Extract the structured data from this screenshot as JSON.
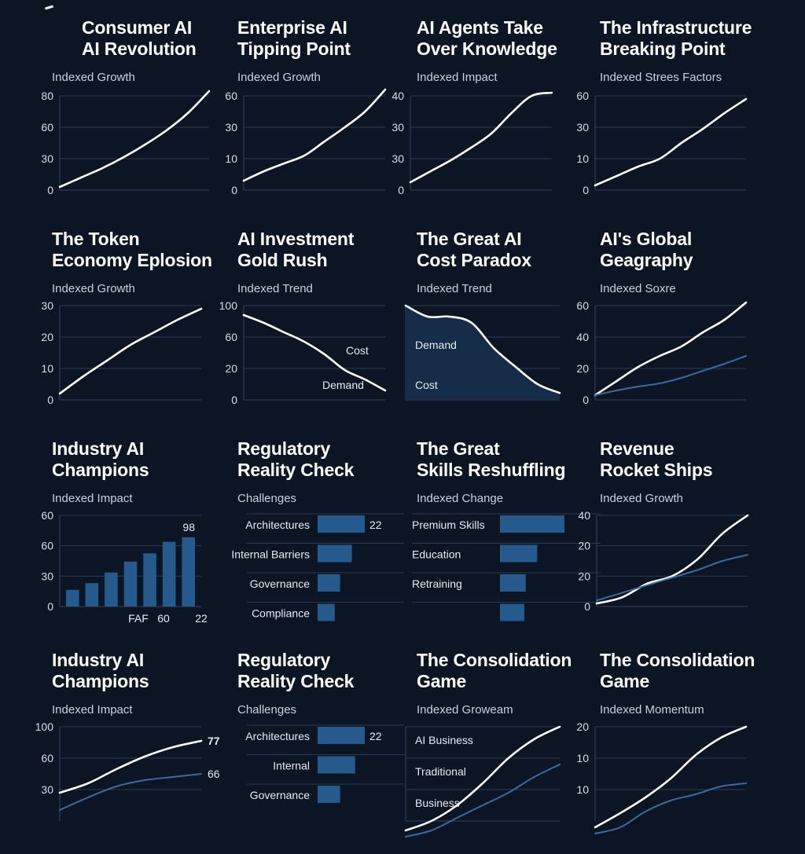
{
  "theme": {
    "background": "#0b1524",
    "primary_line": "#ffffff",
    "secondary_line": "#3d6a9e",
    "bar_fill": "#265a8c",
    "area_fill": "#16304d",
    "grid": "#2a3a52"
  },
  "chart_data": [
    {
      "id": "consumer-ai",
      "type": "line",
      "title": "Consumer AI\nAI Revolution",
      "subtitle": "Indexed Growth",
      "yticks": [
        "80",
        "60",
        "30",
        "0"
      ],
      "ylim": [
        0,
        3
      ],
      "series": [
        {
          "name": "primary",
          "style": "primary",
          "values": [
            0.1,
            0.4,
            0.7,
            1.05,
            1.45,
            1.9,
            2.45,
            3.15
          ]
        }
      ]
    },
    {
      "id": "enterprise-ai",
      "type": "line",
      "title": "Enterprise AI\nTipping Point",
      "subtitle": "Indexed Growth",
      "yticks": [
        "60",
        "30",
        "10",
        "0"
      ],
      "ylim": [
        0,
        3
      ],
      "series": [
        {
          "name": "primary",
          "style": "primary",
          "values": [
            0.3,
            0.6,
            0.85,
            1.1,
            1.55,
            2.0,
            2.5,
            3.2
          ]
        }
      ]
    },
    {
      "id": "ai-agents",
      "type": "line",
      "title": "AI Agents Take\nOver Knowledge",
      "subtitle": "Indexed Impact",
      "yticks": [
        "40",
        "30",
        "30",
        "0"
      ],
      "ylim": [
        0,
        3
      ],
      "series": [
        {
          "name": "primary",
          "style": "primary",
          "values": [
            0.25,
            0.6,
            0.95,
            1.35,
            1.8,
            2.45,
            3.0,
            3.1
          ]
        }
      ]
    },
    {
      "id": "infrastructure",
      "type": "line",
      "title": "The Infrastructure\nBreaking Point",
      "subtitle": "Indexed Strees Factors",
      "yticks": [
        "60",
        "30",
        "10",
        "0"
      ],
      "ylim": [
        0,
        3
      ],
      "series": [
        {
          "name": "primary",
          "style": "primary",
          "values": [
            0.15,
            0.45,
            0.75,
            1.0,
            1.5,
            1.95,
            2.45,
            2.9
          ]
        }
      ]
    },
    {
      "id": "token-economy",
      "type": "line",
      "title": "The Token\nEconomy Eplosion",
      "subtitle": "Indexed Growth",
      "yticks": [
        "30",
        "20",
        "10",
        "0"
      ],
      "ylim": [
        0,
        30
      ],
      "series": [
        {
          "name": "primary",
          "style": "primary",
          "values": [
            2,
            7.5,
            12.5,
            17.5,
            21.5,
            25.5,
            29
          ]
        }
      ]
    },
    {
      "id": "ai-investment",
      "type": "line",
      "title": "AI Investment\nGold Rush",
      "subtitle": "Indexed Trend",
      "yticks": [
        "100",
        "60",
        "20",
        "0"
      ],
      "ylim": [
        0,
        3
      ],
      "series": [
        {
          "name": "primary",
          "style": "primary",
          "values": [
            2.7,
            2.45,
            2.15,
            1.85,
            1.45,
            0.95,
            0.65,
            0.3
          ]
        }
      ],
      "annotations": [
        "Cost",
        "Demand"
      ]
    },
    {
      "id": "cost-paradox",
      "type": "area",
      "title": "The Great AI\nCost Paradox",
      "subtitle": "Indexed Trend",
      "yticks": [],
      "ylim": [
        0,
        3
      ],
      "series": [
        {
          "name": "primary",
          "style": "primary",
          "values": [
            3.0,
            2.65,
            2.65,
            2.45,
            1.65,
            1.05,
            0.5,
            0.22
          ]
        }
      ],
      "annotations": [
        "Demand",
        "Cost"
      ]
    },
    {
      "id": "global-geography",
      "type": "line",
      "title": "AI's Global\nGeagraphy",
      "subtitle": "Indexed Soxre",
      "yticks": [
        "60",
        "40",
        "20",
        "0"
      ],
      "ylim": [
        0,
        60
      ],
      "series": [
        {
          "name": "primary",
          "style": "primary",
          "values": [
            3,
            12,
            21,
            28,
            34,
            43,
            51,
            62
          ]
        },
        {
          "name": "secondary",
          "style": "secondary",
          "values": [
            3,
            6,
            8.5,
            10.5,
            14,
            18.5,
            23,
            28
          ]
        }
      ]
    },
    {
      "id": "industry-champions-bars",
      "type": "bar",
      "title": "Industry AI\nChampions",
      "subtitle": "Indexed Impact",
      "yticks": [
        "60",
        "60",
        "30",
        "0"
      ],
      "ylim": [
        0,
        3
      ],
      "values": [
        0.55,
        0.77,
        1.12,
        1.48,
        1.75,
        2.13,
        2.28
      ],
      "data_labels": {
        "top": "98"
      },
      "x_labels": [
        "FAF",
        "60",
        "22"
      ]
    },
    {
      "id": "regulatory-check-1",
      "type": "hbar",
      "title": "Regulatory\nReality Check",
      "subtitle": "Challenges",
      "categories": [
        "Architectures",
        "Internal Barriers",
        "Governance",
        "Compliance"
      ],
      "values": [
        22,
        16,
        10.5,
        8
      ],
      "value_labels": [
        "22",
        "",
        "",
        ""
      ]
    },
    {
      "id": "skills-reshuffling",
      "type": "hbar",
      "title": "The Great\nSkills Reshuffling",
      "subtitle": "Indexed Change",
      "categories": [
        "Premium Skills",
        "Education",
        "Retraining",
        ""
      ],
      "values": [
        22,
        12.7,
        8.8,
        8.3
      ],
      "value_labels": [
        "",
        "",
        "",
        ""
      ]
    },
    {
      "id": "revenue-rockets",
      "type": "line",
      "title": "Revenue\nRocket Ships",
      "subtitle": "Indexed Growth",
      "yticks": [
        "40",
        "20",
        "20",
        "0"
      ],
      "ylim": [
        0,
        3
      ],
      "series": [
        {
          "name": "primary",
          "style": "primary",
          "values": [
            0.1,
            0.3,
            0.75,
            1.0,
            1.55,
            2.4,
            3.0
          ]
        },
        {
          "name": "secondary",
          "style": "secondary",
          "values": [
            0.2,
            0.45,
            0.7,
            0.95,
            1.2,
            1.5,
            1.7
          ]
        }
      ]
    },
    {
      "id": "industry-champions-lines",
      "type": "line",
      "title": "Industry AI\nChampions",
      "subtitle": "Indexed Impact",
      "yticks": [
        "100",
        "60",
        "30"
      ],
      "ylim": [
        0,
        3
      ],
      "series": [
        {
          "name": "primary",
          "style": "primary",
          "values": [
            0.9,
            1.2,
            1.65,
            2.05,
            2.35,
            2.55
          ],
          "end_label": "77"
        },
        {
          "name": "secondary",
          "style": "secondary",
          "values": [
            0.35,
            0.75,
            1.1,
            1.3,
            1.4,
            1.5
          ],
          "end_label": "66"
        }
      ]
    },
    {
      "id": "regulatory-check-2",
      "type": "hbar",
      "title": "Regulatory\nReality Check",
      "subtitle": "Challenges",
      "categories": [
        "Architectures",
        "Internal",
        "Governance"
      ],
      "values": [
        22,
        17.5,
        10.5
      ],
      "value_labels": [
        "22",
        "",
        ""
      ]
    },
    {
      "id": "consolidation-game-1",
      "type": "line",
      "title": "The Consolidation\nGame",
      "subtitle": "Indexed Groweam",
      "category_labels": [
        "AI Business",
        "Traditional",
        "Business"
      ],
      "ylim": [
        0,
        3
      ],
      "series": [
        {
          "name": "primary",
          "style": "primary",
          "values": [
            -0.3,
            0.0,
            0.5,
            1.2,
            2.0,
            2.6,
            3.0
          ]
        },
        {
          "name": "secondary",
          "style": "secondary",
          "values": [
            -0.5,
            -0.3,
            0.1,
            0.5,
            0.9,
            1.4,
            1.8
          ]
        }
      ]
    },
    {
      "id": "consolidation-game-2",
      "type": "line",
      "title": "The Consolidation\nGame",
      "subtitle": "Indexed Momentum",
      "yticks": [
        "20",
        "10",
        "10"
      ],
      "ylim": [
        0,
        3
      ],
      "series": [
        {
          "name": "primary",
          "style": "primary",
          "values": [
            -0.2,
            0.25,
            0.75,
            1.35,
            2.1,
            2.65,
            3.0
          ]
        },
        {
          "name": "secondary",
          "style": "secondary",
          "values": [
            -0.4,
            -0.2,
            0.3,
            0.65,
            0.85,
            1.1,
            1.2
          ]
        }
      ]
    }
  ]
}
